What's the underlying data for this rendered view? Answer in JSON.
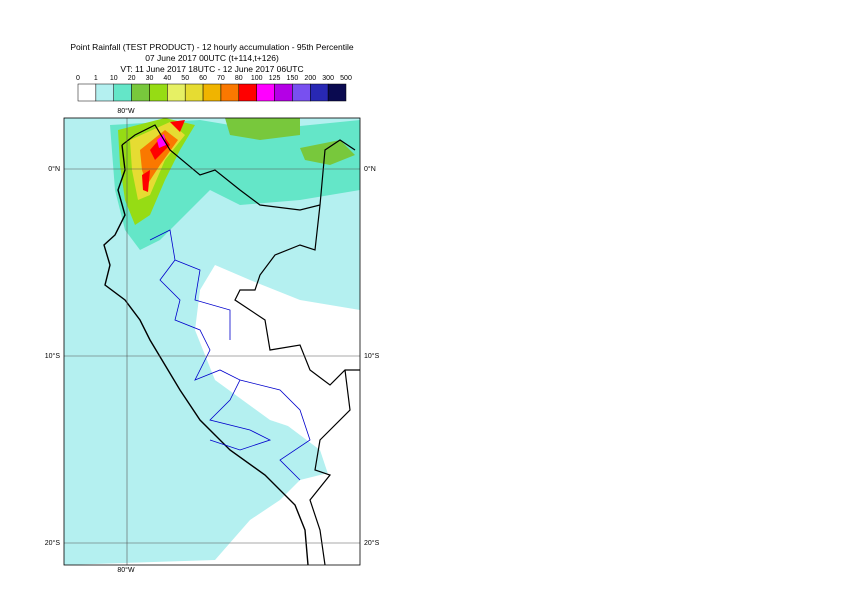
{
  "header": {
    "lines": [
      "Point Rainfall (TEST PRODUCT) - 12 hourly accumulation - 95th Percentile",
      "07 June 2017 00UTC (t+114,t+126)",
      "VT: 11 June 2017 18UTC - 12 June 2017 06UTC"
    ]
  },
  "legend": {
    "thresholds": [
      0,
      1,
      10,
      20,
      30,
      40,
      50,
      60,
      70,
      80,
      100,
      125,
      150,
      200,
      300,
      500
    ],
    "colors": [
      "#ffffff",
      "#b4f0f0",
      "#64e6c8",
      "#78c83c",
      "#96dc14",
      "#e6f064",
      "#e6dc32",
      "#f0b400",
      "#fa7800",
      "#ff0000",
      "#ff00ff",
      "#b400e6",
      "#7850f0",
      "#2828b4",
      "#0a0a50"
    ]
  },
  "map": {
    "lon_labels": [
      "80°W"
    ],
    "lat_labels": [
      "0°N",
      "10°S",
      "20°S"
    ]
  }
}
